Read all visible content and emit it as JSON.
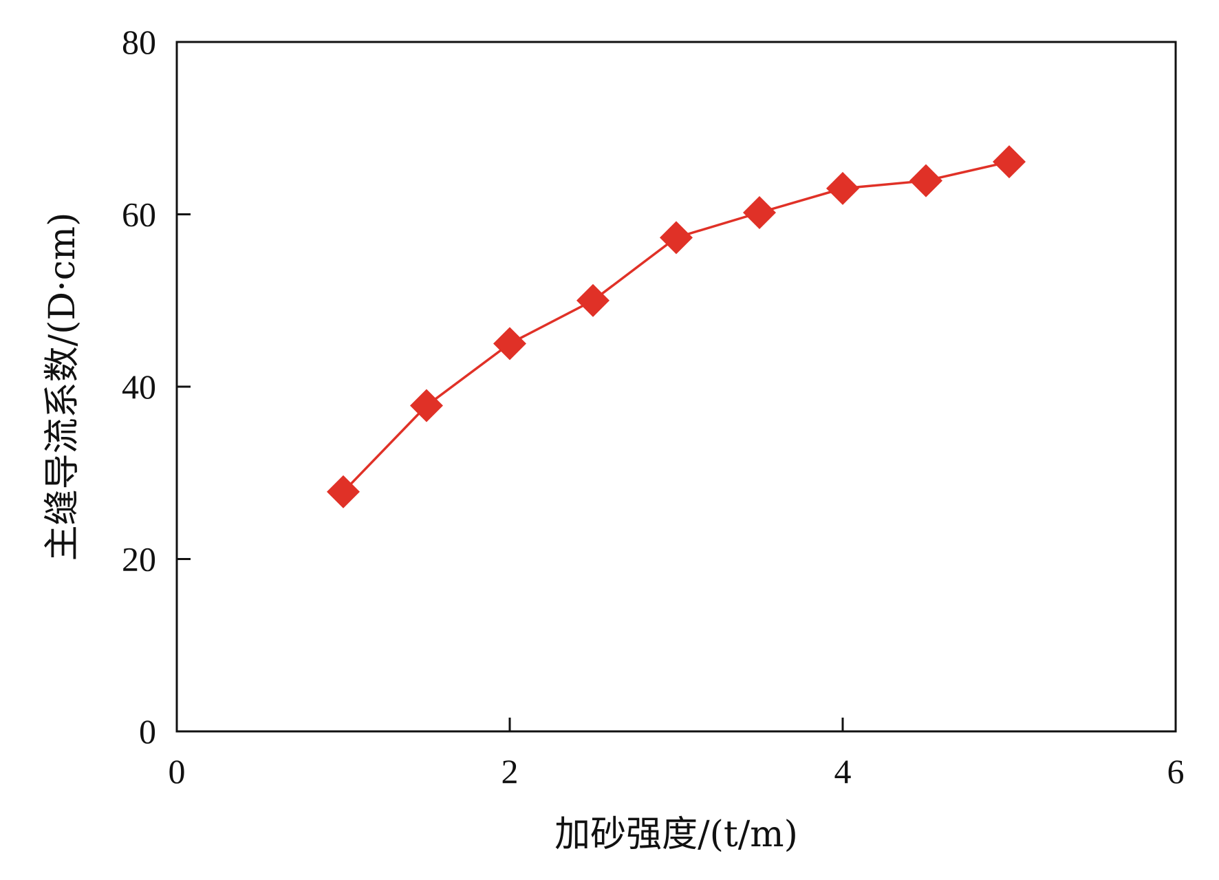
{
  "chart_data": {
    "type": "line",
    "xlabel": "加砂强度/(t/m)",
    "ylabel": "主缝导流系数/(D·cm)",
    "xlim": [
      0,
      6
    ],
    "ylim": [
      0,
      80
    ],
    "x_ticks": [
      0,
      2,
      4,
      6
    ],
    "y_ticks": [
      0,
      20,
      40,
      60,
      80
    ],
    "x_tick_labels": [
      "0",
      "2",
      "4",
      "6"
    ],
    "y_tick_labels": [
      "0",
      "20",
      "40",
      "60",
      "80"
    ],
    "grid": false,
    "legend": "none",
    "series": [
      {
        "x": [
          1.0,
          1.5,
          2.0,
          2.5,
          3.0,
          3.5,
          4.0,
          4.5,
          5.0
        ],
        "y": [
          27.8,
          37.8,
          45.0,
          50.0,
          57.3,
          60.2,
          63.0,
          63.9,
          66.1
        ],
        "color": "#e03127",
        "marker": "diamond"
      }
    ]
  }
}
